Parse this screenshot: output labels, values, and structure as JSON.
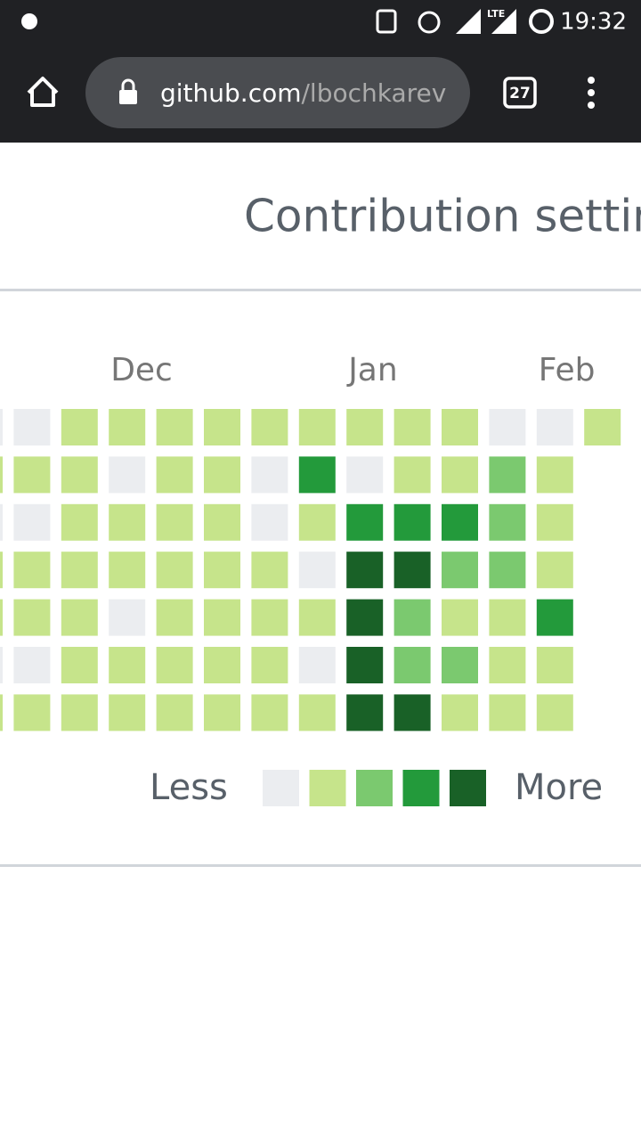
{
  "status_bar": {
    "network": "LTE",
    "time": "19:32"
  },
  "toolbar": {
    "url_host": "github.com",
    "url_path": "/lbochkarev",
    "tab_count": "27"
  },
  "title": "Contribution settings",
  "months": [
    "Dec",
    "Jan",
    "Feb"
  ],
  "level_colors": [
    "#ebedf0",
    "#c6e48b",
    "#7bc96f",
    "#239a3b",
    "#196127"
  ],
  "weeks": [
    [
      0,
      1,
      0,
      1,
      1,
      0,
      1
    ],
    [
      0,
      1,
      0,
      1,
      1,
      0,
      1
    ],
    [
      1,
      1,
      1,
      1,
      1,
      1,
      1
    ],
    [
      1,
      0,
      1,
      1,
      0,
      1,
      1
    ],
    [
      1,
      1,
      1,
      1,
      1,
      1,
      1
    ],
    [
      1,
      1,
      1,
      1,
      1,
      1,
      1
    ],
    [
      1,
      0,
      0,
      1,
      1,
      1,
      1
    ],
    [
      1,
      3,
      1,
      0,
      1,
      0,
      1
    ],
    [
      1,
      0,
      3,
      4,
      4,
      4,
      4
    ],
    [
      1,
      1,
      3,
      4,
      2,
      2,
      4
    ],
    [
      1,
      1,
      3,
      2,
      1,
      2,
      1
    ],
    [
      0,
      2,
      2,
      2,
      1,
      1,
      1
    ],
    [
      0,
      1,
      1,
      1,
      3,
      1,
      1
    ],
    [
      1
    ]
  ],
  "legend": {
    "less": "Less",
    "more": "More"
  }
}
